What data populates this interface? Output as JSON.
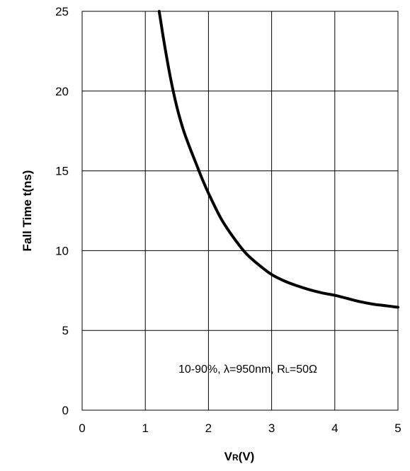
{
  "chart_data": {
    "type": "line",
    "xlabel": {
      "main": "V",
      "sub": "R",
      "unit": "(V)"
    },
    "ylabel": "Fall  Time t(ns)",
    "xlim": [
      0,
      5
    ],
    "ylim": [
      0,
      25
    ],
    "xticks": [
      "0",
      "1",
      "2",
      "3",
      "4",
      "5"
    ],
    "yticks": [
      "0",
      "5",
      "10",
      "15",
      "20",
      "25"
    ],
    "grid": true,
    "line_color": "#000000",
    "annotation": {
      "prefix": "10-90%, λ=950nm, R",
      "sub": "L",
      "suffix": "=50Ω"
    },
    "series": [
      {
        "x": [
          1.22,
          1.3,
          1.4,
          1.5,
          1.6,
          1.7,
          1.8,
          1.9,
          2.0,
          2.2,
          2.4,
          2.6,
          2.8,
          3.0,
          3.2,
          3.4,
          3.6,
          3.8,
          4.0,
          4.2,
          4.4,
          4.6,
          4.8,
          5.0
        ],
        "y": [
          25.0,
          23.0,
          20.8,
          19.0,
          17.6,
          16.5,
          15.5,
          14.5,
          13.6,
          12.0,
          10.8,
          9.8,
          9.1,
          8.5,
          8.1,
          7.8,
          7.55,
          7.35,
          7.2,
          7.0,
          6.8,
          6.65,
          6.55,
          6.45
        ]
      }
    ]
  }
}
